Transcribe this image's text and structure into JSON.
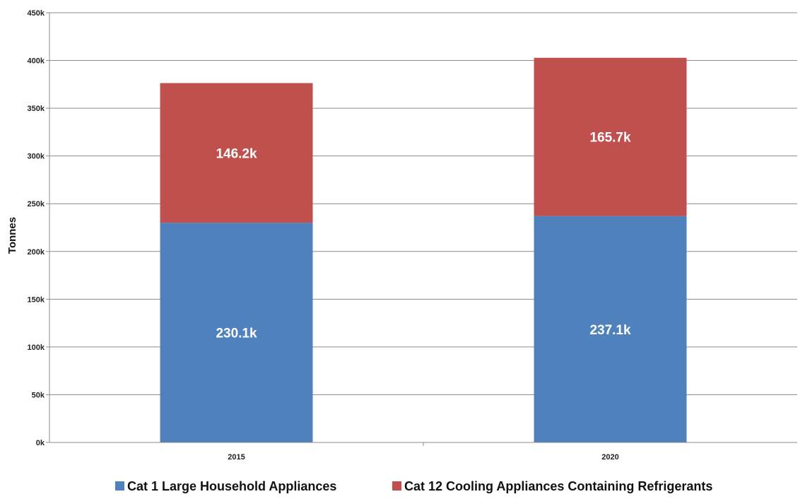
{
  "chart_data": {
    "type": "bar",
    "stacked": true,
    "categories": [
      "2015",
      "2020"
    ],
    "series": [
      {
        "name": "Cat 1 Large Household Appliances",
        "values": [
          230.1,
          237.1
        ],
        "labels": [
          "230.1k",
          "237.1k"
        ],
        "color": "#4f81bd"
      },
      {
        "name": "Cat 12 Cooling Appliances Containing Refrigerants",
        "values": [
          146.2,
          165.7
        ],
        "labels": [
          "146.2k",
          "165.7k"
        ],
        "color": "#c0504d"
      }
    ],
    "ylabel": "Tonnes",
    "xlabel": "",
    "ylim": [
      0,
      450
    ],
    "yticks": [
      0,
      50,
      100,
      150,
      200,
      250,
      300,
      350,
      400,
      450
    ],
    "ytick_labels": [
      "0k",
      "50k",
      "100k",
      "150k",
      "200k",
      "250k",
      "300k",
      "350k",
      "400k",
      "450k"
    ],
    "grid": true,
    "legend_position": "bottom"
  }
}
